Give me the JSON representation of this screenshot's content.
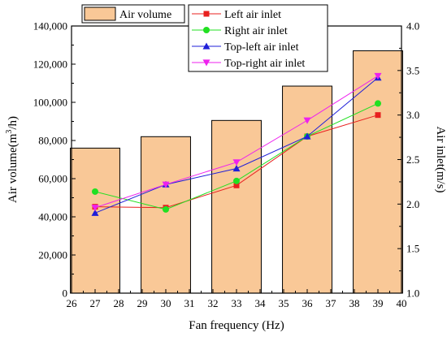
{
  "chart_data": {
    "type": "bar+line",
    "xlabel": "Fan frequency (Hz)",
    "ylabel_left": {
      "prefix": "Air volume(m",
      "sup": "3",
      "suffix": "/h)"
    },
    "ylabel_right": "Air inlet(m/s)",
    "x_ticks": [
      "26",
      "27",
      "28",
      "29",
      "30",
      "31",
      "32",
      "33",
      "34",
      "35",
      "36",
      "37",
      "38",
      "39",
      "40"
    ],
    "x_tick_values": [
      26,
      27,
      28,
      29,
      30,
      31,
      32,
      33,
      34,
      35,
      36,
      37,
      38,
      39,
      40
    ],
    "x_domain": [
      26,
      40
    ],
    "y_left_ticks": [
      "0",
      "20,000",
      "40,000",
      "60,000",
      "80,000",
      "100,000",
      "120,000",
      "140,000"
    ],
    "y_left_tick_values": [
      0,
      20000,
      40000,
      60000,
      80000,
      100000,
      120000,
      140000
    ],
    "ylim_left": [
      0,
      140000
    ],
    "y_right_ticks": [
      "1.0",
      "1.5",
      "2.0",
      "2.5",
      "3.0",
      "3.5",
      "4.0"
    ],
    "y_right_tick_values": [
      1.0,
      1.5,
      2.0,
      2.5,
      3.0,
      3.5,
      4.0
    ],
    "ylim_right": [
      1.0,
      4.0
    ],
    "bars": {
      "name": "Air volume",
      "color": "#F9C897",
      "x": [
        27,
        30,
        33,
        36,
        39
      ],
      "values": [
        76000,
        82000,
        90500,
        108500,
        127000
      ]
    },
    "series": [
      {
        "name": "Left air inlet",
        "color": "#E8201F",
        "marker": "square",
        "x": [
          27,
          30,
          33,
          36,
          39
        ],
        "values": [
          1.97,
          1.96,
          2.21,
          2.76,
          3.0
        ]
      },
      {
        "name": "Right air inlet",
        "color": "#22E022",
        "marker": "circle",
        "x": [
          27,
          30,
          33,
          36,
          39
        ],
        "values": [
          2.14,
          1.94,
          2.26,
          2.76,
          3.13
        ]
      },
      {
        "name": "Top-left air inlet",
        "color": "#1F1FD8",
        "marker": "triangle-up",
        "x": [
          27,
          30,
          33,
          36,
          39
        ],
        "values": [
          1.9,
          2.22,
          2.4,
          2.76,
          3.42
        ]
      },
      {
        "name": "Top-right air inlet",
        "color": "#EE22EE",
        "marker": "triangle-down",
        "x": [
          27,
          30,
          33,
          36,
          39
        ],
        "values": [
          1.96,
          2.22,
          2.47,
          2.94,
          3.44
        ]
      }
    ],
    "grid": false,
    "legend_position": "top"
  }
}
